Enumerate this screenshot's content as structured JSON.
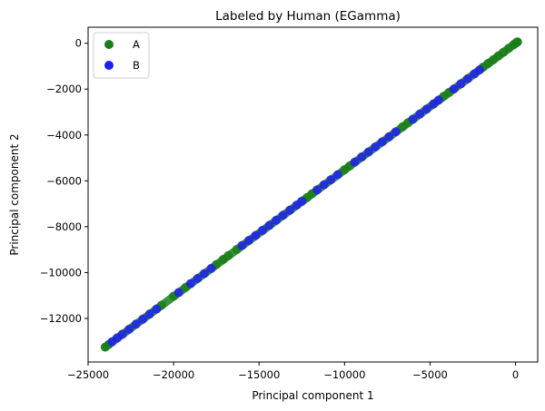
{
  "chart_data": {
    "type": "scatter",
    "title": "Labeled by Human (EGamma)",
    "xlabel": "Principal component 1",
    "ylabel": "Principal component 2",
    "xlim": [
      -25000,
      1300
    ],
    "ylim": [
      -13900,
      700
    ],
    "xticks": [
      -25000,
      -20000,
      -15000,
      -10000,
      -5000,
      0
    ],
    "yticks": [
      0,
      -2000,
      -4000,
      -6000,
      -8000,
      -10000,
      -12000
    ],
    "xtick_labels": [
      "−25000",
      "−20000",
      "−15000",
      "−10000",
      "−5000",
      "0"
    ],
    "ytick_labels": [
      "0",
      "−2000",
      "−4000",
      "−6000",
      "−8000",
      "−10000",
      "−12000"
    ],
    "grid": false,
    "legend_position": "top-left",
    "series": [
      {
        "name": "A",
        "color": "#1a7f1a",
        "points": [
          [
            -24000,
            -13250
          ],
          [
            -23800,
            -13140
          ],
          [
            -20700,
            -11420
          ],
          [
            -20000,
            -11030
          ],
          [
            -19300,
            -10650
          ],
          [
            -17500,
            -9650
          ],
          [
            -17100,
            -9430
          ],
          [
            -16800,
            -9260
          ],
          [
            -16300,
            -8990
          ],
          [
            -12200,
            -6730
          ],
          [
            -11900,
            -6560
          ],
          [
            -10000,
            -5510
          ],
          [
            -9700,
            -5350
          ],
          [
            -6600,
            -3640
          ],
          [
            -6300,
            -3470
          ],
          [
            -4200,
            -2310
          ],
          [
            -3900,
            -2150
          ],
          [
            -1900,
            -1040
          ],
          [
            -1600,
            -880
          ],
          [
            -1300,
            -720
          ],
          [
            -1000,
            -550
          ],
          [
            -700,
            -390
          ],
          [
            -400,
            -220
          ],
          [
            -100,
            -60
          ],
          [
            20,
            10
          ],
          [
            60,
            30
          ],
          [
            120,
            60
          ]
        ]
      },
      {
        "name": "B",
        "color": "#1f1fee",
        "points": [
          [
            -23600,
            -13020
          ],
          [
            -23300,
            -12850
          ],
          [
            -23000,
            -12690
          ],
          [
            -22600,
            -12470
          ],
          [
            -22200,
            -12250
          ],
          [
            -21800,
            -12030
          ],
          [
            -21400,
            -11810
          ],
          [
            -21000,
            -11590
          ],
          [
            -19700,
            -10870
          ],
          [
            -19000,
            -10480
          ],
          [
            -18600,
            -10260
          ],
          [
            -18200,
            -10040
          ],
          [
            -17800,
            -9820
          ],
          [
            -16000,
            -8820
          ],
          [
            -15600,
            -8600
          ],
          [
            -15200,
            -8380
          ],
          [
            -14800,
            -8160
          ],
          [
            -14400,
            -7940
          ],
          [
            -14000,
            -7720
          ],
          [
            -13600,
            -7500
          ],
          [
            -13200,
            -7280
          ],
          [
            -12800,
            -7060
          ],
          [
            -12500,
            -6890
          ],
          [
            -11600,
            -6390
          ],
          [
            -11200,
            -6170
          ],
          [
            -10800,
            -5950
          ],
          [
            -10400,
            -5730
          ],
          [
            -9400,
            -5180
          ],
          [
            -9000,
            -4960
          ],
          [
            -8600,
            -4740
          ],
          [
            -8200,
            -4520
          ],
          [
            -7800,
            -4300
          ],
          [
            -7400,
            -4080
          ],
          [
            -7000,
            -3860
          ],
          [
            -6000,
            -3310
          ],
          [
            -5600,
            -3090
          ],
          [
            -5200,
            -2870
          ],
          [
            -4800,
            -2650
          ],
          [
            -4500,
            -2480
          ],
          [
            -3600,
            -1990
          ],
          [
            -3200,
            -1770
          ],
          [
            -2800,
            -1550
          ],
          [
            -2400,
            -1330
          ],
          [
            -2100,
            -1160
          ]
        ]
      }
    ]
  }
}
